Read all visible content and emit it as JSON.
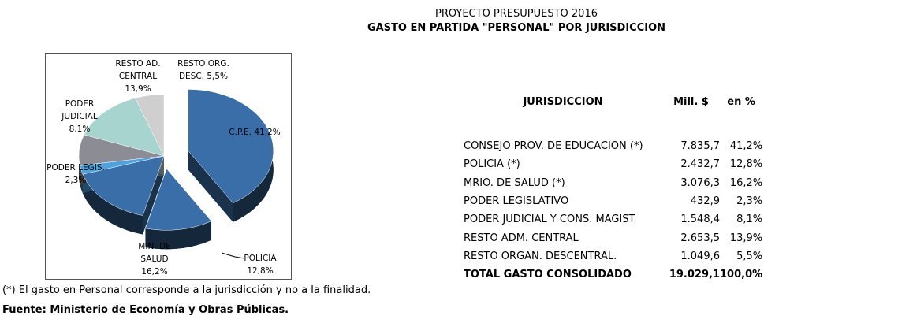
{
  "chart_data": {
    "type": "pie",
    "title": "PROYECTO PRESUPUESTO 2016",
    "subtitle": "GASTO EN PARTIDA \"PERSONAL\" POR JURISDICCION",
    "categories": [
      "C.P.E.",
      "POLICIA",
      "MIN. DE SALUD",
      "PODER LEGIS.",
      "PODER JUDICIAL",
      "RESTO AD. CENTRAL",
      "RESTO ORG. DESC."
    ],
    "values": [
      41.2,
      12.8,
      16.2,
      2.3,
      8.1,
      13.9,
      5.5
    ],
    "value_labels": [
      "41,2%",
      "12,8%",
      "16,2%",
      "2,3%",
      "8,1%",
      "13,9%",
      "5,5%"
    ],
    "colors": [
      "#3a6ea8",
      "#3a6ea8",
      "#3a6ea8",
      "#4ba3e0",
      "#8c8c94",
      "#a8d4d0",
      "#cfcfcf"
    ]
  },
  "table": {
    "header": [
      "JURISDICCION",
      "Mill. $",
      "en %"
    ],
    "rows": [
      [
        "CONSEJO PROV. DE EDUCACION (*)",
        "7.835,7",
        "41,2%"
      ],
      [
        "POLICIA (*)",
        "2.432,7",
        "12,8%"
      ],
      [
        "MRIO. DE SALUD (*)",
        "3.076,3",
        "16,2%"
      ],
      [
        "PODER LEGISLATIVO",
        "432,9",
        "2,3%"
      ],
      [
        "PODER JUDICIAL Y CONS. MAGIST",
        "1.548,4",
        "8,1%"
      ],
      [
        "RESTO ADM. CENTRAL",
        "2.653,5",
        "13,9%"
      ],
      [
        "RESTO ORGAN. DESCENTRAL.",
        "1.049,6",
        "5,5%"
      ]
    ],
    "total": [
      "TOTAL GASTO CONSOLIDADO",
      "19.029,1",
      "100,0%"
    ]
  },
  "footnote": "(*) El gasto en Personal corresponde a la jurisdicción y no a la finalidad.",
  "source": "Fuente: Ministerio de Economía y Obras Públicas."
}
